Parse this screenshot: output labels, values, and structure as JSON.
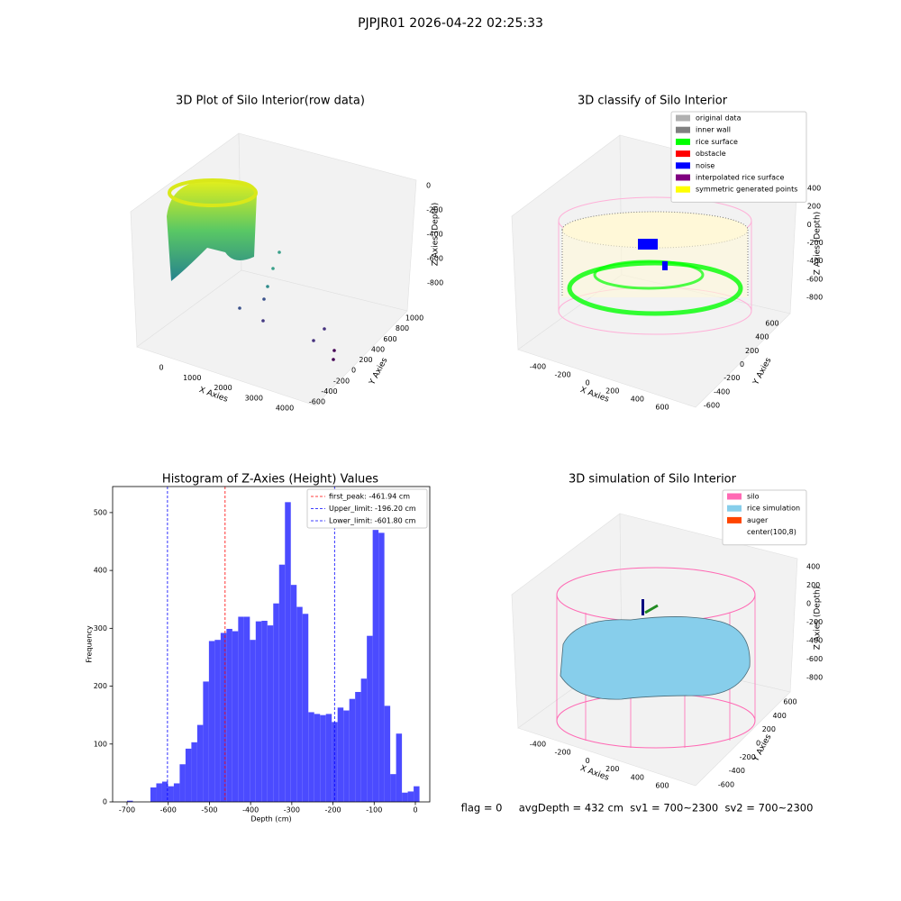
{
  "suptitle": "PJPJR01 2026-04-22 02:25:33",
  "footer": "flag = 0     avgDepth = 432 cm  sv1 = 700~2300  sv2 = 700~2300",
  "chart_data": [
    {
      "type": "scatter3d",
      "title": "3D Plot of Silo Interior(row data)",
      "xlabel": "X Axies",
      "ylabel": "Y Axies",
      "zlabel": "Z Axies (Depth)",
      "xticks": [
        0,
        1000,
        2000,
        3000,
        4000
      ],
      "yticks": [
        -600,
        -400,
        -200,
        0,
        200,
        400,
        600,
        800,
        1000
      ],
      "zticks": [
        0,
        -200,
        -400,
        -600,
        -800
      ]
    },
    {
      "type": "scatter3d",
      "title": "3D classify of Silo Interior",
      "xlabel": "X Axies",
      "ylabel": "Y Axies",
      "zlabel": "Z Axies (Depth)",
      "xticks": [
        -400,
        -200,
        0,
        200,
        400,
        600
      ],
      "yticks": [
        -600,
        -400,
        -200,
        0,
        200,
        400,
        600
      ],
      "zticks": [
        400,
        200,
        0,
        -200,
        -400,
        -600,
        -800
      ],
      "legend": [
        {
          "name": "original data",
          "color": "#b0b0b0"
        },
        {
          "name": "inner wall",
          "color": "#808080"
        },
        {
          "name": "rice surface",
          "color": "#00ff00"
        },
        {
          "name": "obstacle",
          "color": "#ff0000"
        },
        {
          "name": "noise",
          "color": "#0000ff"
        },
        {
          "name": "interpolated rice surface",
          "color": "#800080"
        },
        {
          "name": "symmetric generated points",
          "color": "#ffff00"
        }
      ]
    },
    {
      "type": "histogram",
      "title": "Histogram of Z-Axies (Height) Values",
      "xlabel": "Depth (cm)",
      "ylabel": "Frequency",
      "color": "#4b4bff",
      "bins": [
        -700,
        -685.8,
        -671.6,
        -657.4,
        -643.2,
        -629,
        -614.8,
        -600.6,
        -586.4,
        -572.2,
        -558,
        -543.8,
        -529.6,
        -515.4,
        -501.2,
        -487,
        -472.8,
        -458.6,
        -444.4,
        -430.2,
        -416,
        -401.8,
        -387.6,
        -373.4,
        -359.2,
        -345,
        -330.8,
        -316.6,
        -302.4,
        -288.2,
        -274,
        -259.8,
        -245.6,
        -231.4,
        -217.2,
        -203,
        -188.8,
        -174.6,
        -160.4,
        -146.2,
        -132,
        -117.8,
        -103.6,
        -89.4,
        -75.2,
        -61,
        -46.8,
        -32.6,
        -18.4,
        -4.2,
        10
      ],
      "values": [
        2,
        0,
        0,
        0,
        25,
        32,
        35,
        27,
        32,
        65,
        92,
        103,
        133,
        208,
        278,
        280,
        292,
        299,
        295,
        320,
        320,
        280,
        312,
        313,
        305,
        343,
        410,
        518,
        375,
        337,
        325,
        155,
        152,
        150,
        152,
        138,
        163,
        158,
        178,
        190,
        213,
        287,
        470,
        465,
        166,
        48,
        118,
        16,
        18,
        27
      ],
      "xlim": [
        -735,
        35
      ],
      "ylim": [
        0,
        545
      ],
      "xticks": [
        -700,
        -600,
        -500,
        -400,
        -300,
        -200,
        -100,
        0
      ],
      "yticks": [
        0,
        100,
        200,
        300,
        400,
        500
      ],
      "vlines": [
        {
          "name": "first_peak: -461.94 cm",
          "value": -461.94,
          "color": "#ff0000"
        },
        {
          "name": "Upper_limit: -196.20 cm",
          "value": -196.2,
          "color": "#0000ff"
        },
        {
          "name": "Lower_limit: -601.80 cm",
          "value": -601.8,
          "color": "#0000ff"
        }
      ]
    },
    {
      "type": "surface3d",
      "title": "3D simulation of Silo Interior",
      "xlabel": "X Axies",
      "ylabel": "Y Axies",
      "zlabel": "Z Axies (Depth)",
      "xticks": [
        -400,
        -200,
        0,
        200,
        400,
        600
      ],
      "yticks": [
        -600,
        -400,
        -200,
        0,
        200,
        400,
        600
      ],
      "zticks": [
        400,
        200,
        0,
        -200,
        -400,
        -600,
        -800
      ],
      "legend": [
        {
          "name": "silo",
          "color": "#ff69b4"
        },
        {
          "name": "rice simulation",
          "color": "#87ceeb"
        },
        {
          "name": "auger",
          "color": "#ff4500"
        },
        {
          "name": "center(100,8)",
          "color": "#ffffff"
        }
      ]
    }
  ]
}
